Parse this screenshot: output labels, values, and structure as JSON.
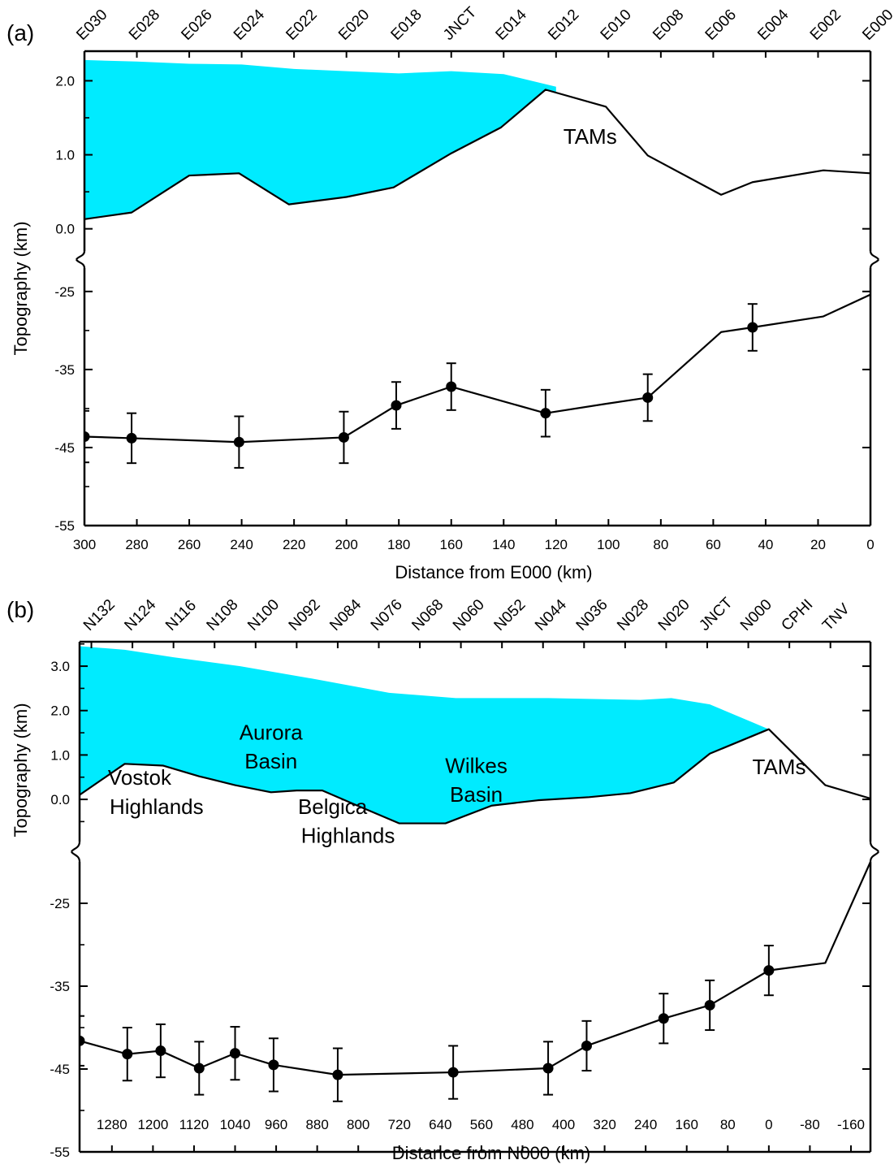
{
  "colors": {
    "ice": "#00EBFF",
    "line": "#000000",
    "background": "#FFFFFF"
  },
  "chart_data": [
    {
      "type": "line",
      "panel_label": "(a)",
      "xlabel": "Distance from E000 (km)",
      "ylabel": "Topography (km)",
      "x_reversed": true,
      "xlim": [
        300,
        0
      ],
      "x_ticks": [
        300,
        280,
        260,
        240,
        220,
        200,
        180,
        160,
        140,
        120,
        100,
        80,
        60,
        40,
        20,
        0
      ],
      "x_tick_labels": [
        "300",
        "280",
        "260",
        "240",
        "220",
        "200",
        "180",
        "160",
        "140",
        "120",
        "100",
        "80",
        "60",
        "40",
        "20",
        "0"
      ],
      "stations": [
        {
          "name": "E030",
          "x": 300
        },
        {
          "name": "E028",
          "x": 280
        },
        {
          "name": "E026",
          "x": 260
        },
        {
          "name": "E024",
          "x": 240
        },
        {
          "name": "E022",
          "x": 220
        },
        {
          "name": "E020",
          "x": 200
        },
        {
          "name": "E018",
          "x": 180
        },
        {
          "name": "JNCT",
          "x": 160
        },
        {
          "name": "E014",
          "x": 140
        },
        {
          "name": "E012",
          "x": 120
        },
        {
          "name": "E010",
          "x": 100
        },
        {
          "name": "E008",
          "x": 80
        },
        {
          "name": "E006",
          "x": 60
        },
        {
          "name": "E004",
          "x": 40
        },
        {
          "name": "E002",
          "x": 20
        },
        {
          "name": "E000",
          "x": 0
        }
      ],
      "top_axis": {
        "ylim": [
          -0.3,
          2.4
        ],
        "y_ticks": [
          0.0,
          1.0,
          2.0
        ],
        "y_tick_labels": [
          "0.0",
          "1.0",
          "2.0"
        ],
        "y_minor_ticks": [
          0.5,
          1.5
        ],
        "ice_surface": {
          "x": [
            300,
            280,
            260,
            240,
            220,
            200,
            180,
            160,
            140,
            120
          ],
          "y": [
            2.28,
            2.26,
            2.23,
            2.22,
            2.16,
            2.13,
            2.1,
            2.13,
            2.09,
            1.92
          ]
        },
        "bedrock": {
          "x": [
            300,
            282,
            260,
            241,
            222,
            200,
            182,
            160,
            141,
            124,
            101,
            85,
            57,
            45,
            18,
            0
          ],
          "y": [
            0.13,
            0.22,
            0.72,
            0.75,
            0.33,
            0.43,
            0.56,
            1.02,
            1.37,
            1.88,
            1.65,
            0.99,
            0.46,
            0.63,
            0.79,
            0.75
          ]
        },
        "annotations": [
          {
            "text": "TAMs",
            "x": 107,
            "y": 1.15
          }
        ]
      },
      "moho_axis": {
        "ylim": [
          -55,
          -22
        ],
        "y_ticks": [
          -55,
          -45,
          -35,
          -25
        ],
        "y_tick_labels": [
          "-55",
          "-45",
          "-35",
          "-25"
        ],
        "y_minor_ticks": [
          -50,
          -40,
          -30
        ],
        "line": {
          "x": [
            300,
            282,
            241,
            201,
            181,
            160,
            124,
            101,
            85,
            57,
            45,
            18,
            0
          ],
          "y": [
            -43.6,
            -43.8,
            -44.3,
            -43.7,
            -39.6,
            -37.2,
            -40.6,
            -39.4,
            -38.6,
            -30.2,
            -29.6,
            -28.2,
            -25.4
          ]
        },
        "points": [
          {
            "x": 300,
            "y": -43.6,
            "err": 3.3
          },
          {
            "x": 282,
            "y": -43.8,
            "err": 3.2
          },
          {
            "x": 241,
            "y": -44.3,
            "err": 3.3
          },
          {
            "x": 201,
            "y": -43.7,
            "err": 3.3
          },
          {
            "x": 181,
            "y": -39.6,
            "err": 3.0
          },
          {
            "x": 160,
            "y": -37.2,
            "err": 3.0
          },
          {
            "x": 124,
            "y": -40.6,
            "err": 3.0
          },
          {
            "x": 85,
            "y": -38.6,
            "err": 3.0
          },
          {
            "x": 45,
            "y": -29.6,
            "err": 3.0
          }
        ]
      }
    },
    {
      "type": "line",
      "panel_label": "(b)",
      "xlabel": "Distance from N000 (km)",
      "ylabel": "Topography (km)",
      "x_reversed": true,
      "xlim": [
        1343,
        -198
      ],
      "x_ticks": [
        1280,
        1200,
        1120,
        1040,
        960,
        880,
        800,
        720,
        640,
        560,
        480,
        400,
        320,
        240,
        160,
        80,
        0,
        -80,
        -160
      ],
      "x_tick_labels": [
        "1280",
        "1200",
        "1120",
        "1040",
        "960",
        "880",
        "800",
        "720",
        "640",
        "560",
        "480",
        "400",
        "320",
        "240",
        "160",
        "80",
        "0",
        "-80",
        "-160"
      ],
      "stations": [
        {
          "name": "N132",
          "x": 1320
        },
        {
          "name": "N124",
          "x": 1240
        },
        {
          "name": "N116",
          "x": 1160
        },
        {
          "name": "N108",
          "x": 1080
        },
        {
          "name": "N100",
          "x": 1000
        },
        {
          "name": "N092",
          "x": 920
        },
        {
          "name": "N084",
          "x": 840
        },
        {
          "name": "N076",
          "x": 760
        },
        {
          "name": "N068",
          "x": 680
        },
        {
          "name": "N060",
          "x": 600
        },
        {
          "name": "N052",
          "x": 520
        },
        {
          "name": "N044",
          "x": 440
        },
        {
          "name": "N036",
          "x": 360
        },
        {
          "name": "N028",
          "x": 280
        },
        {
          "name": "N020",
          "x": 200
        },
        {
          "name": "JNCT",
          "x": 120
        },
        {
          "name": "N000",
          "x": 40
        },
        {
          "name": "CPHI",
          "x": -40
        },
        {
          "name": "TNV",
          "x": -120
        }
      ],
      "top_axis": {
        "ylim": [
          -0.95,
          3.55
        ],
        "y_ticks": [
          0.0,
          1.0,
          2.0,
          3.0
        ],
        "y_tick_labels": [
          "0.0",
          "1.0",
          "2.0",
          "3.0"
        ],
        "y_minor_ticks": [
          -0.5,
          0.5,
          1.5,
          2.5,
          3.5
        ],
        "ice_surface": {
          "x": [
            1343,
            1255,
            1160,
            1030,
            880,
            740,
            610,
            430,
            250,
            190,
            115,
            0
          ],
          "y": [
            3.45,
            3.37,
            3.2,
            3.0,
            2.7,
            2.4,
            2.28,
            2.28,
            2.24,
            2.28,
            2.14,
            1.58
          ]
        },
        "bedrock": {
          "x": [
            1343,
            1255,
            1180,
            1110,
            1040,
            970,
            920,
            870,
            810,
            720,
            630,
            540,
            450,
            350,
            270,
            185,
            115,
            0,
            -110,
            -198
          ],
          "y": [
            0.1,
            0.8,
            0.76,
            0.52,
            0.32,
            0.16,
            0.2,
            0.2,
            -0.1,
            -0.54,
            -0.54,
            -0.14,
            -0.02,
            0.05,
            0.14,
            0.38,
            1.03,
            1.58,
            0.32,
            0.02
          ]
        },
        "annotations": [
          {
            "text": "Vostok",
            "x": 1226,
            "y": 0.33
          },
          {
            "text": "Highlands",
            "x": 1193,
            "y": -0.33
          },
          {
            "text": "Aurora",
            "x": 970,
            "y": 1.35
          },
          {
            "text": "Basin",
            "x": 970,
            "y": 0.7
          },
          {
            "text": "Belgica",
            "x": 850,
            "y": -0.33
          },
          {
            "text": "Highlands",
            "x": 820,
            "y": -0.98
          },
          {
            "text": "Wilkes",
            "x": 570,
            "y": 0.6
          },
          {
            "text": "Basin",
            "x": 570,
            "y": -0.05
          },
          {
            "text": "TAMs",
            "x": -20,
            "y": 0.57
          }
        ]
      },
      "moho_axis": {
        "ylim": [
          -55,
          -20
        ],
        "y_ticks": [
          -55,
          -45,
          -35,
          -25
        ],
        "y_tick_labels": [
          "-55",
          "-45",
          "-35",
          "-25"
        ],
        "y_minor_ticks": [
          -50,
          -40,
          -30
        ],
        "line": {
          "x": [
            1343,
            1250,
            1185,
            1110,
            1040,
            965,
            840,
            615,
            430,
            355,
            205,
            115,
            0,
            -110,
            -198
          ],
          "y": [
            -41.6,
            -43.2,
            -42.8,
            -44.9,
            -43.1,
            -44.5,
            -45.7,
            -45.4,
            -44.9,
            -42.2,
            -38.9,
            -37.3,
            -33.1,
            -32.2,
            -20.0
          ]
        },
        "points": [
          {
            "x": 1343,
            "y": -41.6,
            "err": 3.0
          },
          {
            "x": 1250,
            "y": -43.2,
            "err": 3.2
          },
          {
            "x": 1185,
            "y": -42.8,
            "err": 3.2
          },
          {
            "x": 1110,
            "y": -44.9,
            "err": 3.2
          },
          {
            "x": 1040,
            "y": -43.1,
            "err": 3.2
          },
          {
            "x": 965,
            "y": -44.5,
            "err": 3.2
          },
          {
            "x": 840,
            "y": -45.7,
            "err": 3.2
          },
          {
            "x": 615,
            "y": -45.4,
            "err": 3.2
          },
          {
            "x": 430,
            "y": -44.9,
            "err": 3.2
          },
          {
            "x": 355,
            "y": -42.2,
            "err": 3.0
          },
          {
            "x": 205,
            "y": -38.9,
            "err": 3.0
          },
          {
            "x": 115,
            "y": -37.3,
            "err": 3.0
          },
          {
            "x": 0,
            "y": -33.1,
            "err": 3.0
          }
        ]
      }
    }
  ]
}
